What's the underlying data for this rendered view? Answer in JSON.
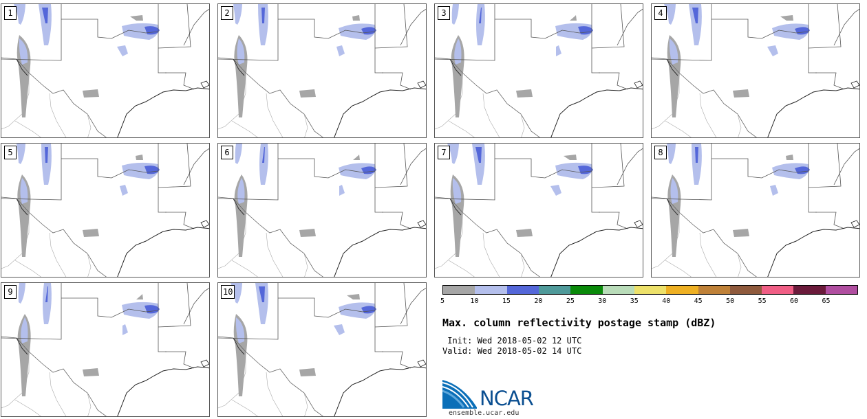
{
  "panels": [
    "1",
    "2",
    "3",
    "4",
    "5",
    "6",
    "7",
    "8",
    "9",
    "10"
  ],
  "colorbar": {
    "unit": "dBZ",
    "ticks": [
      "5",
      "10",
      "15",
      "20",
      "25",
      "30",
      "35",
      "40",
      "45",
      "50",
      "55",
      "60",
      "65"
    ],
    "colors": [
      "#a6a6a6",
      "#b4bfec",
      "#5467d9",
      "#4f9a9a",
      "#0a8a0a",
      "#b9dcb9",
      "#ede16a",
      "#eeb023",
      "#bf8138",
      "#8f5a3d",
      "#f05e85",
      "#6b1b3b",
      "#b04ea0"
    ]
  },
  "title": "Max. column reflectivity postage stamp (dBZ)",
  "init": " Init: Wed 2018-05-02 12 UTC",
  "valid": "Valid: Wed 2018-05-02 14 UTC",
  "logo": {
    "name": "NCAR",
    "site": "ensemble.ucar.edu",
    "color": "#0b4f91"
  }
}
